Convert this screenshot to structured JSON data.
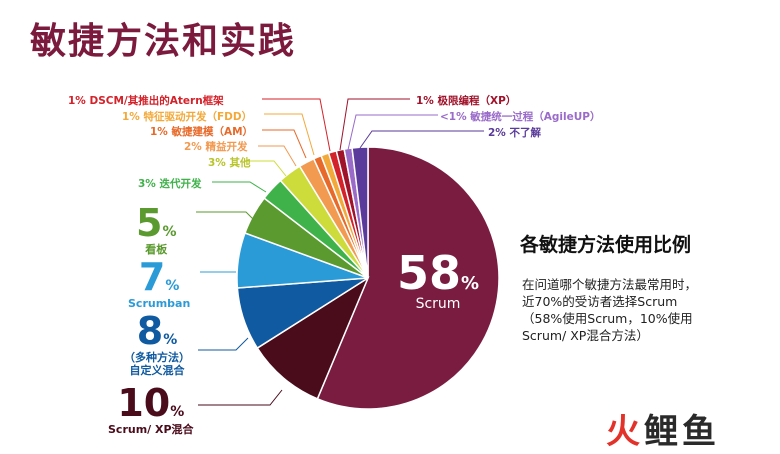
{
  "title": "敏捷方法和实践",
  "side": {
    "title": "各敏捷方法使用比例",
    "desc": [
      "在问道哪个敏捷方法最常用时，",
      "近70%的受访者选择Scrum",
      "（58%使用Scrum，10%使用",
      "Scrum/ XP混合方法）"
    ]
  },
  "watermark": {
    "part1": "火",
    "part2": "鲤鱼"
  },
  "chart_data": {
    "type": "pie",
    "title": "各敏捷方法使用比例",
    "slices": [
      {
        "name": "Scrum",
        "value": 58,
        "color": "#7a1c3f"
      },
      {
        "name": "Scrum/ XP混合",
        "value": 10,
        "color": "#4a0b1b"
      },
      {
        "name": "（多种方法）自定义混合",
        "value": 8,
        "color": "#0f5aa0"
      },
      {
        "name": "Scrumban",
        "value": 7,
        "color": "#2b9bd7"
      },
      {
        "name": "看板",
        "value": 5,
        "color": "#5a9a2e"
      },
      {
        "name": "迭代开发",
        "value": 3,
        "color": "#3fb24a"
      },
      {
        "name": "其他",
        "value": 3,
        "color": "#cddc3a"
      },
      {
        "name": "精益开发",
        "value": 2,
        "color": "#f29a50"
      },
      {
        "name": "敏捷建模（AM）",
        "value": 1,
        "color": "#e86a2a"
      },
      {
        "name": "特征驱动开发（FDD）",
        "value": 1,
        "color": "#f3a93a"
      },
      {
        "name": "DSCM/其推出的Atern框架",
        "value": 1,
        "color": "#d4222a"
      },
      {
        "name": "极限编程（XP）",
        "value": 1,
        "color": "#a0122a"
      },
      {
        "name": "敏捷统一过程（AgileUP）",
        "value": 1,
        "color": "#9a6bc9"
      },
      {
        "name": "不了解",
        "value": 2,
        "color": "#5a3a9a"
      }
    ],
    "labels": {
      "scrum": {
        "num": "58",
        "pct": "%",
        "cap": "Scrum"
      },
      "hybrid": {
        "num": "10",
        "pct": "%",
        "cap": "Scrum/ XP混合"
      },
      "custom": {
        "num": "8",
        "pct": "%",
        "cap1": "（多种方法）",
        "cap2": "自定义混合"
      },
      "scrumban": {
        "num": "7",
        "pct": "%",
        "cap": "Scrumban"
      },
      "kanban": {
        "num": "5",
        "pct": "%",
        "cap": "看板"
      },
      "iter": "3% 迭代开发",
      "other": "3% 其他",
      "lean": "2% 精益开发",
      "am": "1% 敏捷建模（AM）",
      "fdd": "1% 特征驱动开发（FDD）",
      "dscm": "1% DSCM/其推出的Atern框架",
      "xp": "1% 极限编程（XP）",
      "agileup": "<1% 敏捷统一过程（AgileUP）",
      "unknown": "2% 不了解"
    }
  }
}
